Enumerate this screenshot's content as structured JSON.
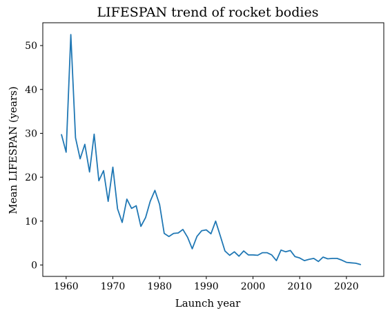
{
  "chart_data": {
    "type": "line",
    "title": "LIFESPAN trend of rocket bodies",
    "xlabel": "Launch year",
    "ylabel": "Mean LIFESPAN (years)",
    "xlim": [
      1955,
      2028
    ],
    "ylim": [
      -2.6,
      55.2
    ],
    "xticks": [
      1960,
      1970,
      1980,
      1990,
      2000,
      2010,
      2020
    ],
    "yticks": [
      0,
      10,
      20,
      30,
      40,
      50
    ],
    "grid": false,
    "legend": "none",
    "series": [
      {
        "color": "#1f77b4",
        "x": [
          1959,
          1960,
          1961,
          1962,
          1963,
          1964,
          1965,
          1966,
          1967,
          1968,
          1969,
          1970,
          1971,
          1972,
          1973,
          1974,
          1975,
          1976,
          1977,
          1978,
          1979,
          1980,
          1981,
          1982,
          1983,
          1984,
          1985,
          1986,
          1987,
          1988,
          1989,
          1990,
          1991,
          1992,
          1993,
          1994,
          1995,
          1996,
          1997,
          1998,
          1999,
          2000,
          2001,
          2002,
          2003,
          2004,
          2005,
          2006,
          2007,
          2008,
          2009,
          2010,
          2011,
          2012,
          2013,
          2014,
          2015,
          2016,
          2017,
          2018,
          2019,
          2020,
          2021,
          2022,
          2023
        ],
        "y": [
          29.7,
          25.7,
          52.5,
          29.0,
          24.2,
          27.5,
          21.2,
          29.8,
          19.2,
          21.5,
          14.5,
          22.3,
          12.8,
          9.7,
          15.0,
          12.9,
          13.5,
          8.8,
          10.8,
          14.5,
          17.0,
          13.8,
          7.2,
          6.5,
          7.2,
          7.3,
          8.1,
          6.3,
          3.7,
          6.5,
          7.8,
          8.0,
          7.1,
          10.0,
          6.6,
          3.2,
          2.2,
          3.0,
          2.0,
          3.2,
          2.3,
          2.3,
          2.2,
          2.8,
          2.8,
          2.3,
          1.0,
          3.4,
          3.0,
          3.3,
          1.9,
          1.6,
          1.0,
          1.3,
          1.5,
          0.8,
          1.8,
          1.4,
          1.5,
          1.5,
          1.1,
          0.6,
          0.5,
          0.4,
          0.1
        ]
      }
    ]
  }
}
